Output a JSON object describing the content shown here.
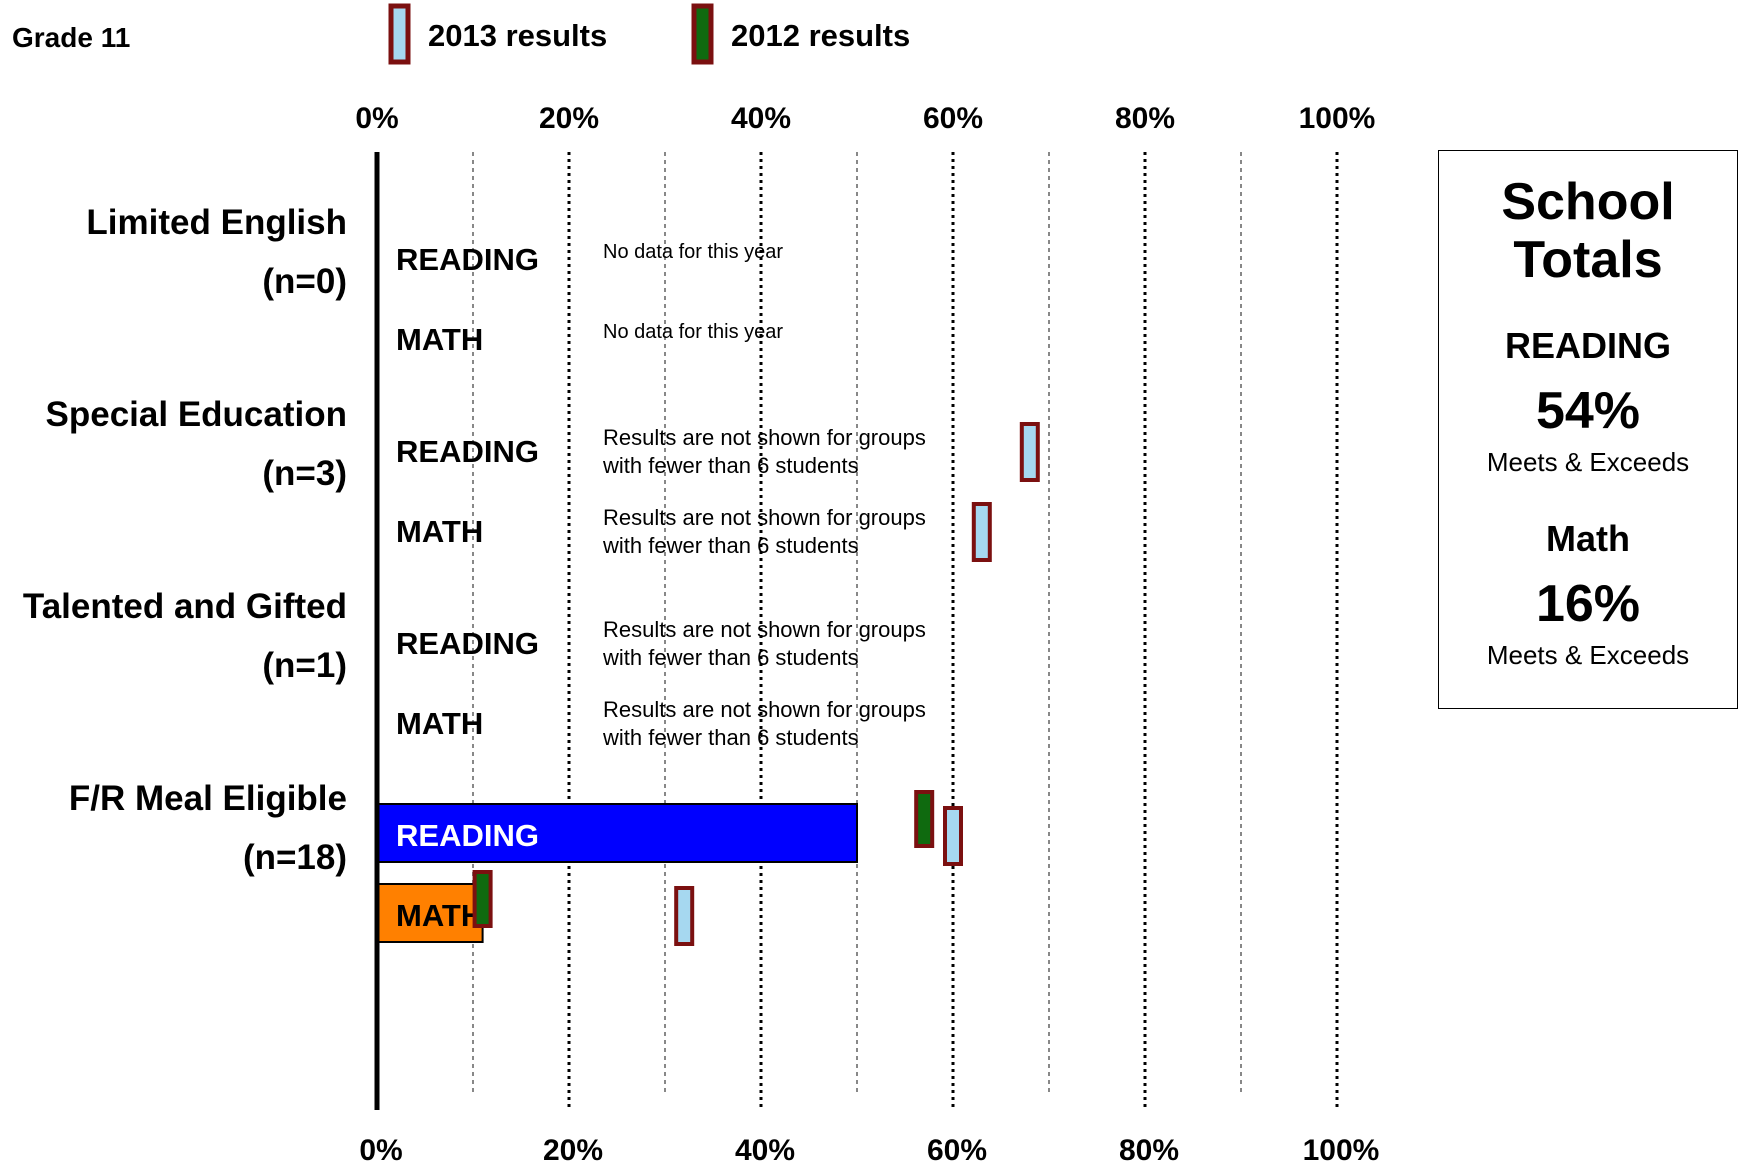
{
  "page_label": "Grade 11",
  "legend": [
    {
      "label": "2013 results",
      "fill": "#a6d8f0",
      "border": "#7b1010"
    },
    {
      "label": "2012 results",
      "fill": "#0f6a0f",
      "border": "#7b1010"
    }
  ],
  "axis": {
    "ticks": [
      0,
      20,
      40,
      60,
      80,
      100
    ],
    "tick_labels": [
      "0%",
      "20%",
      "40%",
      "60%",
      "80%",
      "100%"
    ]
  },
  "chart_data": {
    "type": "bar",
    "orientation": "horizontal",
    "xlim": [
      0,
      100
    ],
    "x_unit": "percent",
    "grid": true,
    "groups": [
      {
        "name": "Limited English",
        "n_label": "(n=0)",
        "rows": [
          {
            "subject": "READING",
            "value": null,
            "note": "No data for this year",
            "r2013": null,
            "r2012": null
          },
          {
            "subject": "MATH",
            "value": null,
            "note": "No data for this year",
            "r2013": null,
            "r2012": null
          }
        ]
      },
      {
        "name": "Special Education",
        "n_label": "(n=3)",
        "rows": [
          {
            "subject": "READING",
            "value": null,
            "note": "Results are not shown for groups with fewer than 6 students",
            "r2013": 68,
            "r2012": null
          },
          {
            "subject": "MATH",
            "value": null,
            "note": "Results are not shown for groups with fewer than 6 students",
            "r2013": 63,
            "r2012": null
          }
        ]
      },
      {
        "name": "Talented and Gifted",
        "n_label": "(n=1)",
        "rows": [
          {
            "subject": "READING",
            "value": null,
            "note": "Results are not shown for groups with fewer than 6 students",
            "r2013": null,
            "r2012": null
          },
          {
            "subject": "MATH",
            "value": null,
            "note": "Results are not shown for groups with fewer than 6 students",
            "r2013": null,
            "r2012": null
          }
        ]
      },
      {
        "name": "F/R Meal Eligible",
        "n_label": "(n=18)",
        "rows": [
          {
            "subject": "READING",
            "value": 50,
            "color": "#0000ff",
            "note": null,
            "r2013": 60,
            "r2012": 57
          },
          {
            "subject": "MATH",
            "value": 11,
            "color": "#ff8000",
            "note": null,
            "r2013": 32,
            "r2012": 11
          }
        ]
      }
    ]
  },
  "school_totals": {
    "title_line1": "School",
    "title_line2": "Totals",
    "reading_label": "READING",
    "reading_value": "54%",
    "reading_caption": "Meets & Exceeds",
    "math_label": "Math",
    "math_value": "16%",
    "math_caption": "Meets & Exceeds"
  }
}
